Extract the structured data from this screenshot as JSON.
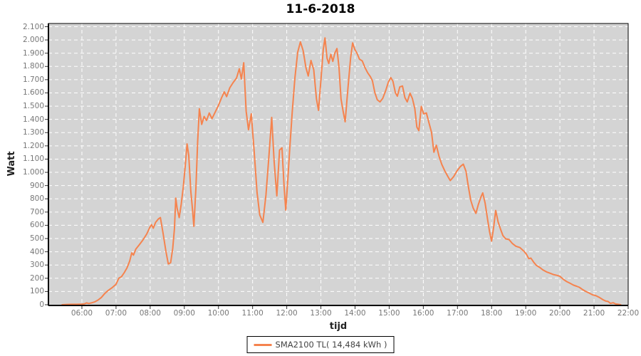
{
  "chart_data": {
    "type": "line",
    "title": "11-6-2018",
    "xlabel": "tijd",
    "ylabel": "Watt",
    "x_domain_hours": [
      5.02,
      22.0
    ],
    "y_domain": [
      0,
      2100
    ],
    "grid": {
      "visible": true,
      "style": "dashed",
      "color": "#ffffff"
    },
    "x_tick_hours": [
      6,
      7,
      8,
      9,
      10,
      11,
      12,
      13,
      14,
      15,
      16,
      17,
      18,
      19,
      20,
      21,
      22
    ],
    "x_tick_labels": [
      "06:00",
      "07:00",
      "08:00",
      "09:00",
      "10:00",
      "11:00",
      "12:00",
      "13:00",
      "14:00",
      "15:00",
      "16:00",
      "17:00",
      "18:00",
      "19:00",
      "20:00",
      "21:00",
      "22:00"
    ],
    "y_tick_values": [
      0,
      100,
      200,
      300,
      400,
      500,
      600,
      700,
      800,
      900,
      1000,
      1100,
      1200,
      1300,
      1400,
      1500,
      1600,
      1700,
      1800,
      1900,
      2000,
      2100
    ],
    "y_tick_labels": [
      "0",
      "100",
      "200",
      "300",
      "400",
      "500",
      "600",
      "700",
      "800",
      "900",
      "1.000",
      "1.100",
      "1.200",
      "1.300",
      "1.400",
      "1.500",
      "1.600",
      "1.700",
      "1.800",
      "1.900",
      "2.000",
      "2.100"
    ],
    "legend": {
      "label": "SMA2100 TL( 14,484 kWh )",
      "position": "bottom-center"
    },
    "colors": {
      "line": "#F5834E",
      "plot_bg": "#D4D4D4",
      "grid": "#FFFFFF",
      "border": "#000000",
      "tick_text": "#777777",
      "title_text": "#000000",
      "axis_label_text": "#222222",
      "legend_text": "#444444"
    },
    "series": [
      {
        "name": "SMA2100 TL",
        "points": [
          [
            5.42,
            0
          ],
          [
            5.55,
            2
          ],
          [
            5.7,
            3
          ],
          [
            5.85,
            3
          ],
          [
            6.0,
            5
          ],
          [
            6.08,
            7
          ],
          [
            6.14,
            14
          ],
          [
            6.2,
            9
          ],
          [
            6.28,
            14
          ],
          [
            6.38,
            22
          ],
          [
            6.47,
            35
          ],
          [
            6.57,
            55
          ],
          [
            6.67,
            85
          ],
          [
            6.77,
            108
          ],
          [
            6.88,
            128
          ],
          [
            7.0,
            155
          ],
          [
            7.08,
            200
          ],
          [
            7.16,
            212
          ],
          [
            7.24,
            242
          ],
          [
            7.32,
            278
          ],
          [
            7.4,
            330
          ],
          [
            7.46,
            392
          ],
          [
            7.51,
            375
          ],
          [
            7.58,
            420
          ],
          [
            7.68,
            452
          ],
          [
            7.79,
            490
          ],
          [
            7.9,
            535
          ],
          [
            7.99,
            585
          ],
          [
            8.04,
            605
          ],
          [
            8.09,
            578
          ],
          [
            8.16,
            622
          ],
          [
            8.24,
            648
          ],
          [
            8.3,
            658
          ],
          [
            8.38,
            535
          ],
          [
            8.46,
            405
          ],
          [
            8.53,
            308
          ],
          [
            8.6,
            318
          ],
          [
            8.66,
            425
          ],
          [
            8.71,
            572
          ],
          [
            8.75,
            805
          ],
          [
            8.79,
            728
          ],
          [
            8.85,
            658
          ],
          [
            8.91,
            762
          ],
          [
            8.97,
            892
          ],
          [
            9.04,
            1085
          ],
          [
            9.08,
            1215
          ],
          [
            9.13,
            1128
          ],
          [
            9.19,
            858
          ],
          [
            9.23,
            748
          ],
          [
            9.28,
            592
          ],
          [
            9.34,
            885
          ],
          [
            9.39,
            1230
          ],
          [
            9.44,
            1480
          ],
          [
            9.51,
            1362
          ],
          [
            9.58,
            1422
          ],
          [
            9.65,
            1392
          ],
          [
            9.73,
            1448
          ],
          [
            9.81,
            1405
          ],
          [
            9.91,
            1458
          ],
          [
            10.0,
            1505
          ],
          [
            10.09,
            1562
          ],
          [
            10.17,
            1608
          ],
          [
            10.24,
            1572
          ],
          [
            10.33,
            1638
          ],
          [
            10.43,
            1678
          ],
          [
            10.53,
            1712
          ],
          [
            10.61,
            1782
          ],
          [
            10.67,
            1705
          ],
          [
            10.74,
            1828
          ],
          [
            10.81,
            1462
          ],
          [
            10.88,
            1322
          ],
          [
            10.96,
            1442
          ],
          [
            11.04,
            1178
          ],
          [
            11.13,
            848
          ],
          [
            11.21,
            678
          ],
          [
            11.3,
            622
          ],
          [
            11.39,
            828
          ],
          [
            11.47,
            1095
          ],
          [
            11.56,
            1415
          ],
          [
            11.63,
            1082
          ],
          [
            11.71,
            822
          ],
          [
            11.79,
            1168
          ],
          [
            11.86,
            1185
          ],
          [
            11.92,
            902
          ],
          [
            11.97,
            715
          ],
          [
            12.03,
            945
          ],
          [
            12.09,
            1185
          ],
          [
            12.16,
            1455
          ],
          [
            12.24,
            1715
          ],
          [
            12.32,
            1908
          ],
          [
            12.4,
            1985
          ],
          [
            12.48,
            1920
          ],
          [
            12.56,
            1792
          ],
          [
            12.63,
            1728
          ],
          [
            12.71,
            1845
          ],
          [
            12.79,
            1775
          ],
          [
            12.87,
            1555
          ],
          [
            12.93,
            1468
          ],
          [
            13.0,
            1698
          ],
          [
            13.07,
            1930
          ],
          [
            13.12,
            2015
          ],
          [
            13.18,
            1862
          ],
          [
            13.23,
            1822
          ],
          [
            13.29,
            1892
          ],
          [
            13.35,
            1838
          ],
          [
            13.41,
            1902
          ],
          [
            13.47,
            1935
          ],
          [
            13.53,
            1790
          ],
          [
            13.59,
            1555
          ],
          [
            13.66,
            1448
          ],
          [
            13.71,
            1382
          ],
          [
            13.79,
            1628
          ],
          [
            13.87,
            1865
          ],
          [
            13.93,
            1978
          ],
          [
            13.99,
            1930
          ],
          [
            14.06,
            1898
          ],
          [
            14.13,
            1855
          ],
          [
            14.21,
            1842
          ],
          [
            14.29,
            1792
          ],
          [
            14.37,
            1752
          ],
          [
            14.45,
            1722
          ],
          [
            14.51,
            1692
          ],
          [
            14.58,
            1602
          ],
          [
            14.65,
            1548
          ],
          [
            14.73,
            1532
          ],
          [
            14.81,
            1558
          ],
          [
            14.9,
            1618
          ],
          [
            14.98,
            1685
          ],
          [
            15.05,
            1715
          ],
          [
            15.11,
            1688
          ],
          [
            15.18,
            1602
          ],
          [
            15.24,
            1575
          ],
          [
            15.31,
            1645
          ],
          [
            15.39,
            1652
          ],
          [
            15.46,
            1565
          ],
          [
            15.53,
            1532
          ],
          [
            15.61,
            1598
          ],
          [
            15.68,
            1558
          ],
          [
            15.75,
            1482
          ],
          [
            15.81,
            1342
          ],
          [
            15.87,
            1315
          ],
          [
            15.94,
            1498
          ],
          [
            16.01,
            1442
          ],
          [
            16.09,
            1448
          ],
          [
            16.16,
            1380
          ],
          [
            16.24,
            1302
          ],
          [
            16.31,
            1152
          ],
          [
            16.38,
            1205
          ],
          [
            16.46,
            1122
          ],
          [
            16.54,
            1060
          ],
          [
            16.63,
            1010
          ],
          [
            16.72,
            968
          ],
          [
            16.79,
            938
          ],
          [
            16.89,
            968
          ],
          [
            16.98,
            1008
          ],
          [
            17.08,
            1042
          ],
          [
            17.17,
            1062
          ],
          [
            17.25,
            1008
          ],
          [
            17.31,
            905
          ],
          [
            17.39,
            788
          ],
          [
            17.46,
            730
          ],
          [
            17.54,
            690
          ],
          [
            17.61,
            755
          ],
          [
            17.69,
            815
          ],
          [
            17.74,
            845
          ],
          [
            17.81,
            768
          ],
          [
            17.88,
            648
          ],
          [
            17.94,
            550
          ],
          [
            18.0,
            480
          ],
          [
            18.06,
            585
          ],
          [
            18.12,
            712
          ],
          [
            18.19,
            625
          ],
          [
            18.26,
            572
          ],
          [
            18.33,
            522
          ],
          [
            18.41,
            498
          ],
          [
            18.51,
            492
          ],
          [
            18.61,
            462
          ],
          [
            18.71,
            442
          ],
          [
            18.83,
            432
          ],
          [
            18.93,
            408
          ],
          [
            19.01,
            385
          ],
          [
            19.09,
            348
          ],
          [
            19.15,
            352
          ],
          [
            19.23,
            322
          ],
          [
            19.31,
            298
          ],
          [
            19.41,
            282
          ],
          [
            19.51,
            262
          ],
          [
            19.61,
            248
          ],
          [
            19.71,
            238
          ],
          [
            19.81,
            228
          ],
          [
            19.91,
            222
          ],
          [
            20.0,
            215
          ],
          [
            20.1,
            192
          ],
          [
            20.2,
            175
          ],
          [
            20.3,
            162
          ],
          [
            20.4,
            148
          ],
          [
            20.49,
            140
          ],
          [
            20.57,
            132
          ],
          [
            20.66,
            115
          ],
          [
            20.76,
            100
          ],
          [
            20.86,
            88
          ],
          [
            20.96,
            75
          ],
          [
            21.06,
            68
          ],
          [
            21.16,
            55
          ],
          [
            21.26,
            38
          ],
          [
            21.34,
            28
          ],
          [
            21.41,
            25
          ],
          [
            21.48,
            10
          ],
          [
            21.56,
            15
          ],
          [
            21.63,
            6
          ],
          [
            21.71,
            3
          ],
          [
            21.78,
            0
          ]
        ]
      }
    ]
  }
}
